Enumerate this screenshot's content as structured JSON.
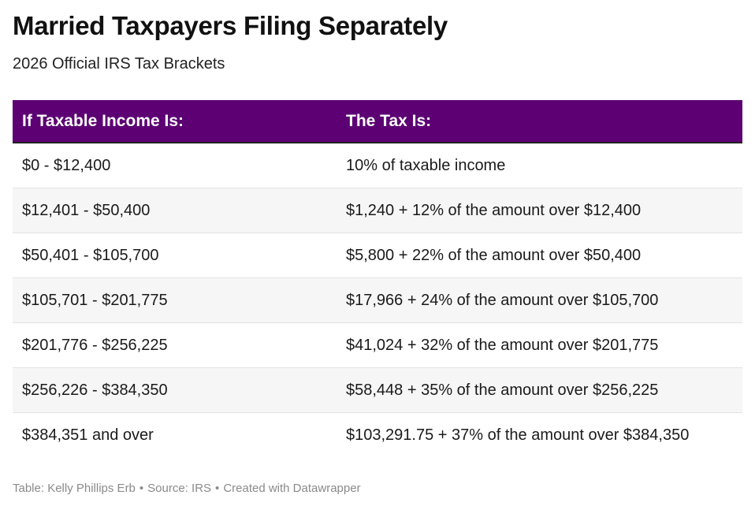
{
  "chart_data": {
    "type": "table",
    "title": "Married Taxpayers Filing Separately",
    "subtitle": "2026 Official IRS Tax Brackets",
    "columns": [
      "If Taxable Income Is:",
      "The Tax Is:"
    ],
    "rows": [
      [
        "$0 - $12,400",
        "10% of taxable income"
      ],
      [
        "$12,401 - $50,400",
        "$1,240 + 12% of the amount over $12,400"
      ],
      [
        "$50,401 - $105,700",
        "$5,800 + 22% of the amount over $50,400"
      ],
      [
        "$105,701 - $201,775",
        "$17,966 + 24% of the amount over $105,700"
      ],
      [
        "$201,776 - $256,225",
        "$41,024 + 32% of the amount over $201,775"
      ],
      [
        "$256,226 - $384,350",
        "$58,448 + 35% of the amount over $256,225"
      ],
      [
        "$384,351 and over",
        "$103,291.75 + 37% of the amount over $384,350"
      ]
    ],
    "footer": {
      "table_credit": "Table: Kelly Phillips Erb",
      "source": "Source: IRS",
      "tool": "Created with Datawrapper",
      "separator": "•"
    }
  },
  "colors": {
    "header_background": "#5c0073",
    "header_text": "#ffffff",
    "stripe": "#f6f6f6",
    "footer_text": "#8a8a8a"
  }
}
